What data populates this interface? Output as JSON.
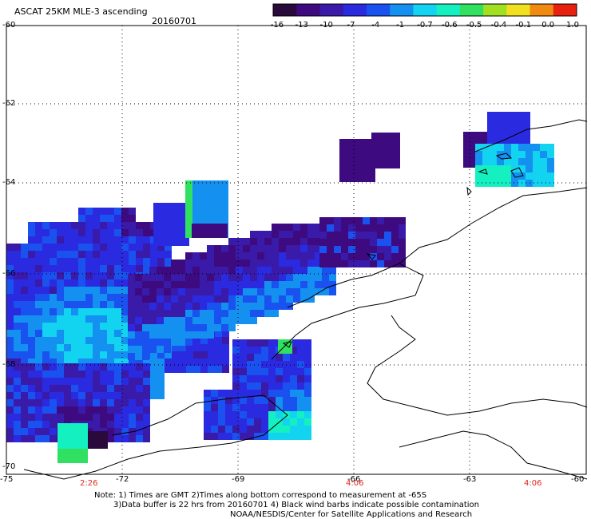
{
  "header": {
    "title": "ASCAT 25KM MLE-3 ascending",
    "date": "20160701"
  },
  "colorbar": {
    "tick_labels": [
      "-16",
      "-13",
      "-10",
      "-7",
      "-4",
      "-1",
      "-0.7",
      "-0.6",
      "-0.5",
      "-0.4",
      "-0.1",
      "0.0",
      "1.0"
    ],
    "colors": [
      "#2a0a3a",
      "#3e0a80",
      "#3a1aa8",
      "#2a2ae0",
      "#1a52f0",
      "#1490f0",
      "#12d4f0",
      "#14f0c0",
      "#30e060",
      "#a0e020",
      "#f0e020",
      "#f08a10",
      "#e82010"
    ]
  },
  "map": {
    "lat_labels": [
      "-60",
      "-62",
      "-64",
      "-66",
      "-68",
      "-70"
    ],
    "lon_labels": [
      "-75",
      "-72",
      "-69",
      "-66",
      "-63",
      "-60"
    ],
    "pass_times": [
      "2:26",
      "4:06",
      "4:06"
    ],
    "coast_color": "#000000",
    "grid_color": "#000000"
  },
  "footer": {
    "note_line1": "Note: 1) Times are GMT 2)Times along bottom correspond to measurement at -65S",
    "note_line2": "3)Data buffer is 22 hrs from 20160701 4) Black wind barbs indicate possible contamination",
    "credit": "NOAA/NESDIS/Center for Satellite Applications and Research"
  }
}
